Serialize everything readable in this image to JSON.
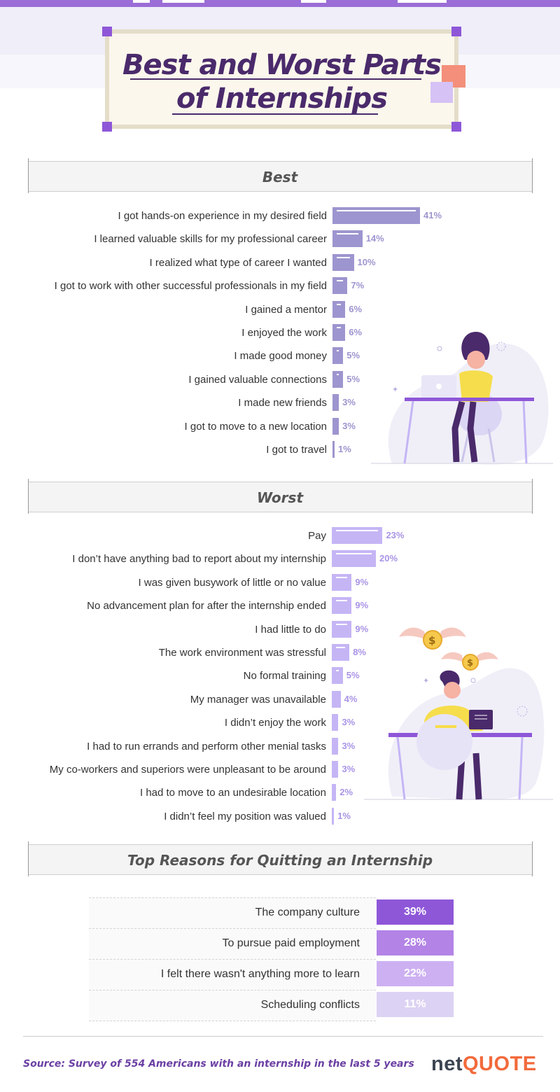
{
  "colors": {
    "best_bar": "#9d95cf",
    "best_pct": "#9d95cf",
    "worst_bar": "#c5b5f5",
    "worst_pct": "#a994e6",
    "title": "#4a2a6b",
    "quit_boxes": [
      "#8e57d8",
      "#b383e6",
      "#cdb0f2",
      "#dcd2f3"
    ],
    "source": "#6b3fa3",
    "logo_net": "#3d4552",
    "logo_quote": "#f26a3c"
  },
  "header": {
    "title_line1": "Best and Worst Parts",
    "title_line2": "of Internships"
  },
  "best": {
    "title": "Best",
    "items": [
      {
        "label": "I got hands-on experience in my desired field",
        "value": 41,
        "pct": "41%"
      },
      {
        "label": "I learned valuable skills for my professional career",
        "value": 14,
        "pct": "14%"
      },
      {
        "label": "I realized what type of career I wanted",
        "value": 10,
        "pct": "10%"
      },
      {
        "label": "I got to work with other successful professionals in my field",
        "value": 7,
        "pct": "7%"
      },
      {
        "label": "I gained a mentor",
        "value": 6,
        "pct": "6%"
      },
      {
        "label": "I enjoyed the work",
        "value": 6,
        "pct": "6%"
      },
      {
        "label": "I made good money",
        "value": 5,
        "pct": "5%"
      },
      {
        "label": "I gained valuable connections",
        "value": 5,
        "pct": "5%"
      },
      {
        "label": "I made new friends",
        "value": 3,
        "pct": "3%"
      },
      {
        "label": "I got to move to a new location",
        "value": 3,
        "pct": "3%"
      },
      {
        "label": "I got to travel",
        "value": 1,
        "pct": "1%"
      }
    ]
  },
  "worst": {
    "title": "Worst",
    "items": [
      {
        "label": "Pay",
        "value": 23,
        "pct": "23%"
      },
      {
        "label": "I don’t have anything bad to report about my internship",
        "value": 20,
        "pct": "20%"
      },
      {
        "label": "I was given busywork of little or no value",
        "value": 9,
        "pct": "9%"
      },
      {
        "label": "No advancement plan for after the internship ended",
        "value": 9,
        "pct": "9%"
      },
      {
        "label": "I had little to do",
        "value": 9,
        "pct": "9%"
      },
      {
        "label": "The work environment was stressful",
        "value": 8,
        "pct": "8%"
      },
      {
        "label": "No formal training",
        "value": 5,
        "pct": "5%"
      },
      {
        "label": "My manager was unavailable",
        "value": 4,
        "pct": "4%"
      },
      {
        "label": "I didn’t enjoy the work",
        "value": 3,
        "pct": "3%"
      },
      {
        "label": "I had to run errands and perform other menial tasks",
        "value": 3,
        "pct": "3%"
      },
      {
        "label": "My co-workers and superiors were unpleasant to be around",
        "value": 3,
        "pct": "3%"
      },
      {
        "label": "I had to move to an undesirable location",
        "value": 2,
        "pct": "2%"
      },
      {
        "label": "I didn’t feel my position was valued",
        "value": 1,
        "pct": "1%"
      }
    ]
  },
  "quitting": {
    "title": "Top Reasons for Quitting an Internship",
    "items": [
      {
        "label": "The company culture",
        "value": 39,
        "pct": "39%"
      },
      {
        "label": "To pursue paid employment",
        "value": 28,
        "pct": "28%"
      },
      {
        "label": "I felt there wasn't anything more to learn",
        "value": 22,
        "pct": "22%"
      },
      {
        "label": "Scheduling conflicts",
        "value": 11,
        "pct": "11%"
      }
    ]
  },
  "footer": {
    "source": "Source: Survey of 554 Americans with an internship in the last 5 years",
    "logo_net": "net",
    "logo_quote": "QUOTE"
  },
  "chart_data": [
    {
      "type": "bar",
      "title": "Best",
      "categories": [
        "I got hands-on experience in my desired field",
        "I learned valuable skills for my professional career",
        "I realized what type of career I wanted",
        "I got to work with other successful professionals in my field",
        "I gained a mentor",
        "I enjoyed the work",
        "I made good money",
        "I gained valuable connections",
        "I made new friends",
        "I got to move to a new location",
        "I got to travel"
      ],
      "values": [
        41,
        14,
        10,
        7,
        6,
        6,
        5,
        5,
        3,
        3,
        1
      ],
      "orientation": "horizontal"
    },
    {
      "type": "bar",
      "title": "Worst",
      "categories": [
        "Pay",
        "I don’t have anything bad to report about my internship",
        "I was given busywork of little or no value",
        "No advancement plan for after the internship ended",
        "I had little to do",
        "The work environment was stressful",
        "No formal training",
        "My manager was unavailable",
        "I didn’t enjoy the work",
        "I had to run errands and perform other menial tasks",
        "My co-workers and superiors were unpleasant to be around",
        "I had to move to an undesirable location",
        "I didn’t feel my position was valued"
      ],
      "values": [
        23,
        20,
        9,
        9,
        9,
        8,
        5,
        4,
        3,
        3,
        3,
        2,
        1
      ],
      "orientation": "horizontal"
    },
    {
      "type": "table",
      "title": "Top Reasons for Quitting an Internship",
      "categories": [
        "The company culture",
        "To pursue paid employment",
        "I felt there wasn't anything more to learn",
        "Scheduling conflicts"
      ],
      "values": [
        39,
        28,
        22,
        11
      ]
    }
  ]
}
